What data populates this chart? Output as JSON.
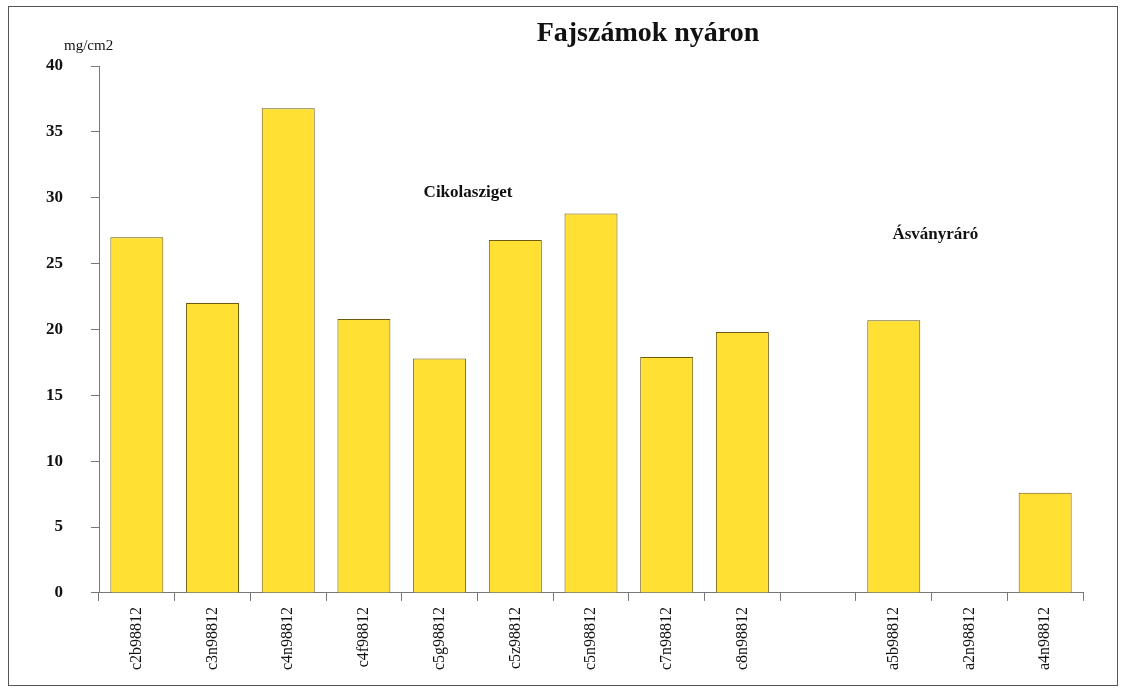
{
  "chart_data": {
    "type": "bar",
    "title": "Fajszámok nyáron",
    "ylabel": "mg/cm2",
    "categories": [
      "c2b98812",
      "c3n98812",
      "c4n98812",
      "c4f98812",
      "c5g98812",
      "c5z98812",
      "c5n98812",
      "c7n98812",
      "c8n98812",
      null,
      "a5b98812",
      "a2n98812",
      "a4n98812"
    ],
    "values": [
      27,
      22,
      36.8,
      20.8,
      17.8,
      26.8,
      28.8,
      17.9,
      19.8,
      null,
      20.7,
      0,
      7.6
    ],
    "color": "#ffe033",
    "ylim": [
      0,
      40
    ],
    "yticks": [
      0,
      5,
      10,
      15,
      20,
      25,
      30,
      35,
      40
    ],
    "grid": false,
    "legend": false,
    "annotations": [
      "Cikolasziget",
      "Ásványráró"
    ]
  }
}
